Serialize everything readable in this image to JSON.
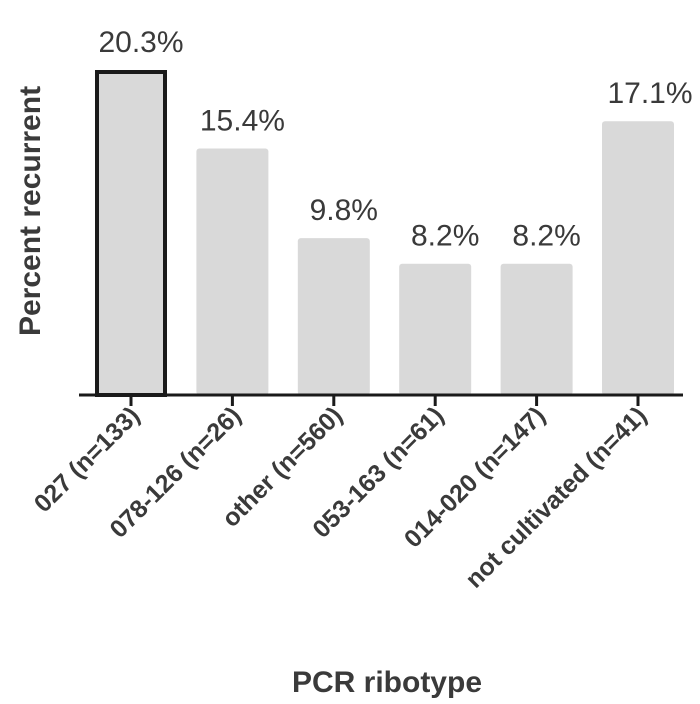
{
  "chart_data": {
    "type": "bar",
    "title": "",
    "xlabel": "PCR ribotype",
    "ylabel": "Percent recurrent",
    "categories": [
      "027  (n=133)",
      "078-126 (n=26)",
      "other (n=560)",
      "053-163 (n=61)",
      "014-020 (n=147)",
      "not cultivated (n=41)"
    ],
    "values": [
      20.3,
      15.4,
      9.8,
      8.2,
      8.2,
      17.1
    ],
    "value_labels": [
      "20.3%",
      "15.4%",
      "9.8%",
      "8.2%",
      "8.2%",
      "17.1%"
    ],
    "highlighted_category": "027  (n=133)",
    "ylim": [
      0,
      20.3
    ],
    "grid": false,
    "y_ticks_shown": false,
    "colors": {
      "bar": "#d9d9d9",
      "highlight_outline": "#1a1a1a",
      "axis": "#1a1a1a",
      "text": "#3a3a3a"
    }
  }
}
